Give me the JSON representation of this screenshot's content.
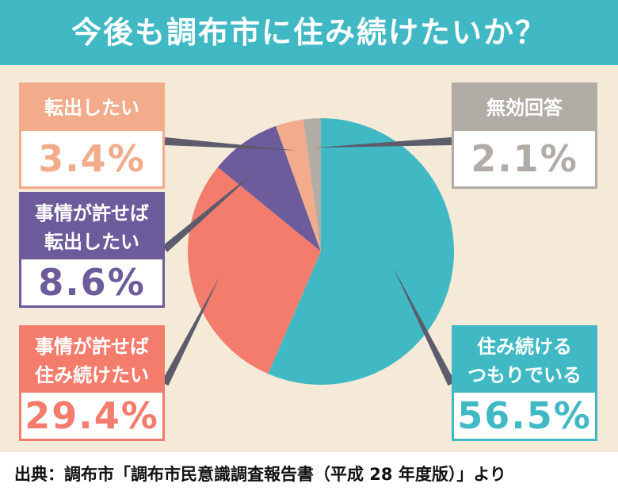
{
  "title": "今後も調布市に住み続けたいか？",
  "source": "出典：調布市「調布市民意識調査報告書（平成 28 年度版）」より",
  "colors": {
    "header": "#41b9c4",
    "background": "#f5ead8",
    "leader_line": "#5c5c6b"
  },
  "chart_data": {
    "type": "pie",
    "slices": [
      {
        "label": "住み続ける\nつもりでいる",
        "value": 56.5,
        "value_label": "56.5%",
        "color": "#41b9c4"
      },
      {
        "label": "事情が許せば\n住み続けたい",
        "value": 29.4,
        "value_label": "29.4%",
        "color": "#f47c6d"
      },
      {
        "label": "事情が許せば\n転出したい",
        "value": 8.6,
        "value_label": "8.6%",
        "color": "#6c5c9c"
      },
      {
        "label": "転出したい",
        "value": 3.4,
        "value_label": "3.4%",
        "color": "#f2ac8b"
      },
      {
        "label": "無効回答",
        "value": 2.1,
        "value_label": "2.1%",
        "color": "#b1aca6"
      }
    ]
  }
}
